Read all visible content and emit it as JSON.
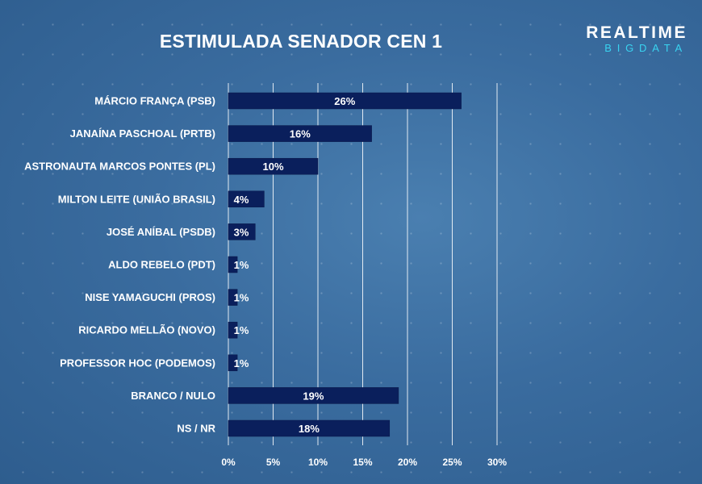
{
  "header": {
    "title": "ESTIMULADA SENADOR CEN 1",
    "logo_line1": "REALTIME",
    "logo_line2": "BIGDATA"
  },
  "colors": {
    "bar": "#0a1f5c",
    "bar_border": "#081848",
    "grid": "#ffffff",
    "logo_accent": "#39d3f0"
  },
  "chart_data": {
    "type": "bar",
    "orientation": "horizontal",
    "title": "ESTIMULADA SENADOR CEN 1",
    "categories": [
      "MÁRCIO FRANÇA (PSB)",
      "JANAÍNA PASCHOAL (PRTB)",
      "ASTRONAUTA MARCOS PONTES (PL)",
      "MILTON LEITE (UNIÃO BRASIL)",
      "JOSÉ ANÍBAL (PSDB)",
      "ALDO REBELO (PDT)",
      "NISE YAMAGUCHI (PROS)",
      "RICARDO MELLÃO (NOVO)",
      "PROFESSOR HOC (PODEMOS)",
      "BRANCO / NULO",
      "NS / NR"
    ],
    "values": [
      26,
      16,
      10,
      4,
      3,
      1,
      1,
      1,
      1,
      19,
      18
    ],
    "labels": [
      "26%",
      "16%",
      "10%",
      "4%",
      "3%",
      "1%",
      "1%",
      "1%",
      "1%",
      "19%",
      "18%"
    ],
    "xlim": [
      0,
      30
    ],
    "ticks": [
      0,
      5,
      10,
      15,
      20,
      25,
      30
    ],
    "tick_labels": [
      "0%",
      "5%",
      "10%",
      "15%",
      "20%",
      "25%",
      "30%"
    ],
    "grid": true,
    "legend": "none"
  }
}
